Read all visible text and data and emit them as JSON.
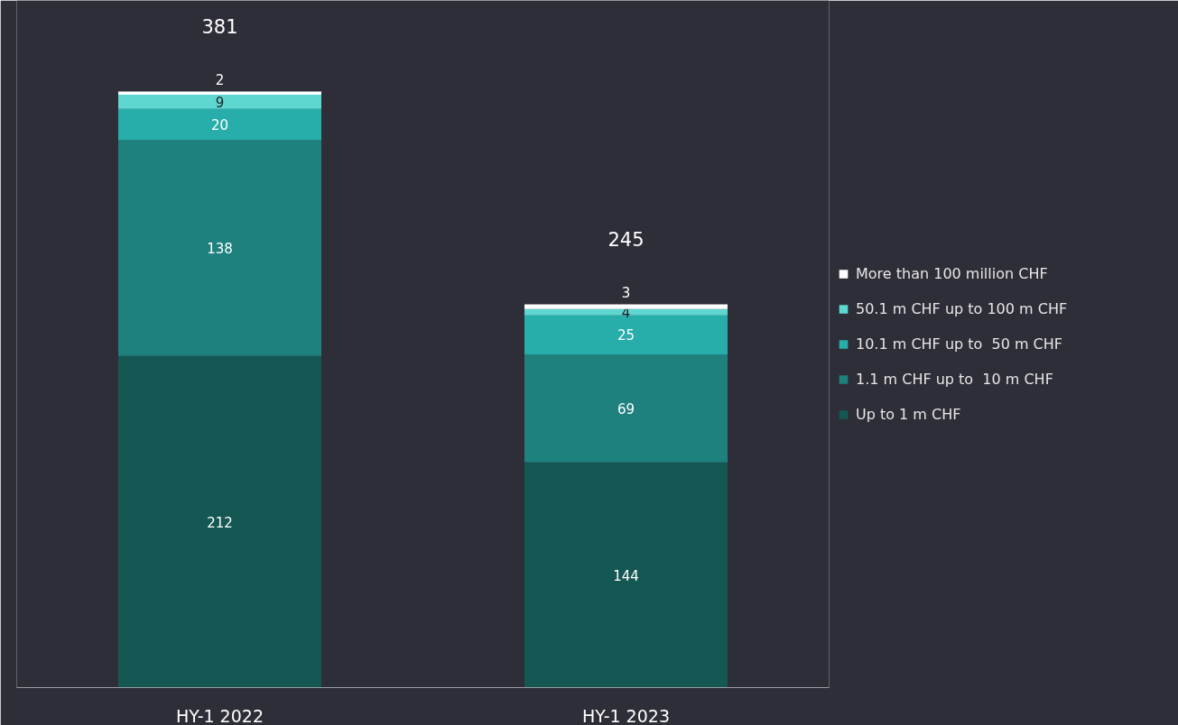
{
  "chart_data": {
    "type": "bar",
    "stacked": true,
    "data_labels": true,
    "legend": "right",
    "grid": false,
    "categories": [
      "HY-1 2022",
      "HY-1 2023"
    ],
    "series": [
      {
        "name": "Up to 1 m CHF",
        "color": "#155752",
        "values": [
          212,
          144
        ]
      },
      {
        "name": "1.1 m CHF up to  10 m CHF",
        "color": "#1e817d",
        "values": [
          138,
          69
        ]
      },
      {
        "name": "10.1 m CHF up to  50 m CHF",
        "color": "#27aeaa",
        "values": [
          20,
          25
        ]
      },
      {
        "name": "50.1 m CHF up to 100 m CHF",
        "color": "#5fd7d1",
        "values": [
          9,
          4
        ]
      },
      {
        "name": "More than 100 million CHF",
        "color": "#ffffff",
        "values": [
          2,
          3
        ]
      }
    ],
    "totals": [
      "381",
      "245"
    ]
  }
}
